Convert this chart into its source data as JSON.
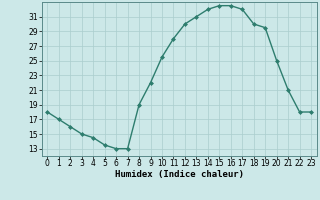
{
  "x": [
    0,
    1,
    2,
    3,
    4,
    5,
    6,
    7,
    8,
    9,
    10,
    11,
    12,
    13,
    14,
    15,
    16,
    17,
    18,
    19,
    20,
    21,
    22,
    23
  ],
  "y": [
    18,
    17,
    16,
    15,
    14.5,
    13.5,
    13,
    13,
    19,
    22,
    25.5,
    28,
    30,
    31,
    32,
    32.5,
    32.5,
    32,
    30,
    29.5,
    25,
    21,
    18,
    18
  ],
  "line_color": "#2e7d6e",
  "marker": "D",
  "marker_size": 2.0,
  "bg_color": "#cce8e8",
  "grid_color": "#aacece",
  "xlabel": "Humidex (Indice chaleur)",
  "ylim": [
    12,
    33
  ],
  "xlim": [
    -0.5,
    23.5
  ],
  "yticks": [
    13,
    15,
    17,
    19,
    21,
    23,
    25,
    27,
    29,
    31
  ],
  "xticks": [
    0,
    1,
    2,
    3,
    4,
    5,
    6,
    7,
    8,
    9,
    10,
    11,
    12,
    13,
    14,
    15,
    16,
    17,
    18,
    19,
    20,
    21,
    22,
    23
  ],
  "xlabel_fontsize": 6.5,
  "tick_fontsize": 5.5,
  "line_width": 1.0
}
